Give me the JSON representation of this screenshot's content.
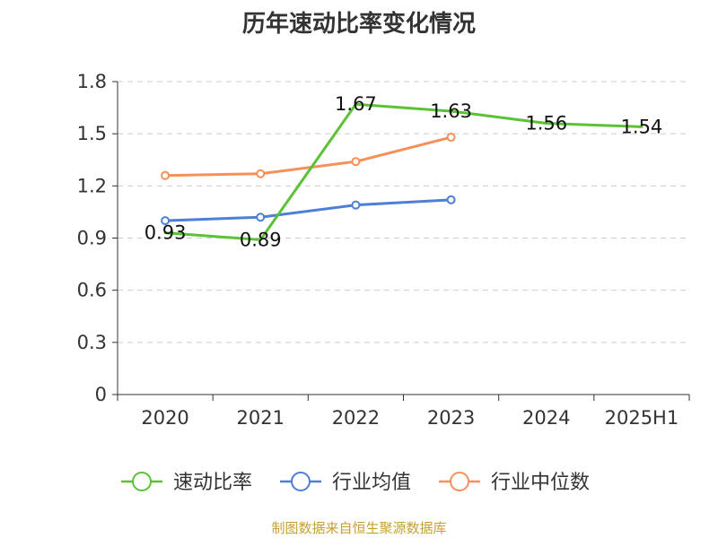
{
  "chart_data": {
    "type": "line",
    "title": "历年速动比率变化情况",
    "categories": [
      "2020",
      "2021",
      "2022",
      "2023",
      "2024",
      "2025H1"
    ],
    "ylim": [
      0,
      1.8
    ],
    "yticks": [
      "0",
      "0.3",
      "0.6",
      "0.9",
      "1.2",
      "1.5",
      "1.8"
    ],
    "grid": true,
    "legend_position": "bottom",
    "series": [
      {
        "name": "速动比率",
        "color": "#5bc236",
        "values": [
          0.93,
          0.89,
          1.67,
          1.63,
          1.56,
          1.54
        ],
        "labels": [
          "0.93",
          "0.89",
          "1.67",
          "1.63",
          "1.56",
          "1.54"
        ]
      },
      {
        "name": "行业均值",
        "color": "#4d7fd6",
        "values": [
          1.0,
          1.02,
          1.09,
          1.12,
          null,
          null
        ]
      },
      {
        "name": "行业中位数",
        "color": "#f5905a",
        "values": [
          1.26,
          1.27,
          1.34,
          1.48,
          null,
          null
        ]
      }
    ]
  },
  "source": "制图数据来自恒生聚源数据库"
}
